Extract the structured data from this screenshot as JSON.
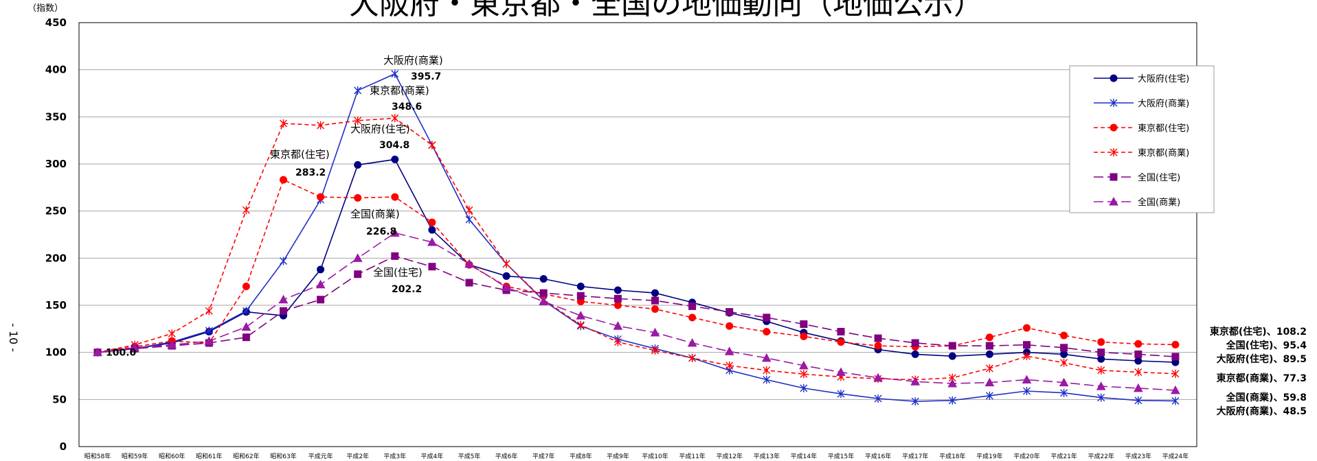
{
  "chart_data": {
    "type": "line",
    "title": "大阪府・東京都・全国の地価動向（地価公示）",
    "ylabel": "（指数）",
    "ylim": [
      0,
      450
    ],
    "yticks": [
      0,
      50,
      100,
      150,
      200,
      250,
      300,
      350,
      400,
      450
    ],
    "grid": true,
    "legend_position": "top-right",
    "categories": [
      "昭和58年",
      "昭和59年",
      "昭和60年",
      "昭和61年",
      "昭和62年",
      "昭和63年",
      "平成元年",
      "平成2年",
      "平成3年",
      "平成4年",
      "平成5年",
      "平成6年",
      "平成7年",
      "平成8年",
      "平成9年",
      "平成10年",
      "平成11年",
      "平成12年",
      "平成13年",
      "平成14年",
      "平成15年",
      "平成16年",
      "平成17年",
      "平成18年",
      "平成19年",
      "平成20年",
      "平成21年",
      "平成22年",
      "平成23年",
      "平成24年"
    ],
    "series": [
      {
        "name": "大阪府(住宅)",
        "color": "#000080",
        "dash": "solid",
        "marker": "circle",
        "values": [
          100,
          104,
          110,
          122,
          143,
          139,
          188,
          299,
          304.8,
          230,
          193,
          181,
          178,
          170,
          166,
          163,
          153,
          142,
          133,
          121,
          112,
          103,
          98,
          96,
          98,
          100,
          98,
          93,
          91,
          89.5
        ]
      },
      {
        "name": "大阪府(商業)",
        "color": "#1f2fc8",
        "dash": "solid",
        "marker": "star",
        "values": [
          100,
          104,
          111,
          123,
          144,
          197,
          262,
          378,
          395.7,
          320,
          241,
          194,
          155,
          128,
          114,
          104,
          94,
          81,
          71,
          62,
          56,
          51,
          48,
          49,
          54,
          59,
          57,
          52,
          49,
          48.5
        ]
      },
      {
        "name": "東京都(住宅)",
        "color": "#ff0000",
        "dash": "dashed",
        "marker": "circle",
        "values": [
          100,
          106,
          112,
          110,
          170,
          283.2,
          265,
          264,
          265,
          238,
          193,
          170,
          162,
          154,
          150,
          146,
          137,
          128,
          122,
          117,
          111,
          107,
          106,
          107,
          116,
          126,
          118,
          111,
          109,
          108.2
        ]
      },
      {
        "name": "東京都(商業)",
        "color": "#ff0000",
        "dash": "dashed",
        "marker": "star",
        "values": [
          100,
          108,
          120,
          144,
          251,
          343,
          341,
          346,
          348.6,
          320,
          251,
          194,
          156,
          129,
          111,
          102,
          94,
          86,
          81,
          77,
          74,
          72,
          71,
          73,
          83,
          96,
          89,
          81,
          79,
          77.3
        ]
      },
      {
        "name": "全国(住宅)",
        "color": "#800080",
        "dash": "longdash",
        "marker": "square",
        "values": [
          100,
          104,
          107,
          110,
          116,
          144,
          156,
          183,
          202.2,
          191,
          174,
          166,
          163,
          160,
          157,
          155,
          149,
          143,
          137,
          130,
          122,
          115,
          110,
          107,
          107,
          108,
          105,
          100,
          98,
          95.4
        ]
      },
      {
        "name": "全国(商業)",
        "color": "#9b1aa3",
        "dash": "longdash",
        "marker": "triangle",
        "values": [
          100,
          105,
          108,
          112,
          127,
          156,
          172,
          200,
          226.8,
          217,
          194,
          169,
          154,
          139,
          128,
          121,
          110,
          101,
          94,
          86,
          79,
          73,
          69,
          67,
          68,
          71,
          68,
          64,
          62,
          59.8
        ]
      }
    ],
    "peak_annotations": [
      {
        "series": "大阪府(商業)",
        "category": "平成3年",
        "label": "大阪府(商業)",
        "value": "395.7"
      },
      {
        "series": "東京都(商業)",
        "category": "平成3年",
        "label": "東京都(商業)",
        "value": "348.6"
      },
      {
        "series": "大阪府(住宅)",
        "category": "平成3年",
        "label": "大阪府(住宅)",
        "value": "304.8"
      },
      {
        "series": "東京都(住宅)",
        "category": "昭和63年",
        "label": "東京都(住宅)",
        "value": "283.2"
      },
      {
        "series": "全国(商業)",
        "category": "平成3年",
        "label": "全国(商業)",
        "value": "226.8"
      },
      {
        "series": "全国(住宅)",
        "category": "平成3年",
        "label": "全国(住宅)",
        "value": "202.2"
      }
    ],
    "start_value_label": "100.0",
    "end_labels": [
      "東京都(住宅)、108.2",
      "全国(住宅)、95.4",
      "大阪府(住宅)、89.5",
      "東京都(商業)、77.3",
      "全国(商業)、59.8",
      "大阪府(商業)、48.5"
    ]
  },
  "page_number": "- 10 -"
}
